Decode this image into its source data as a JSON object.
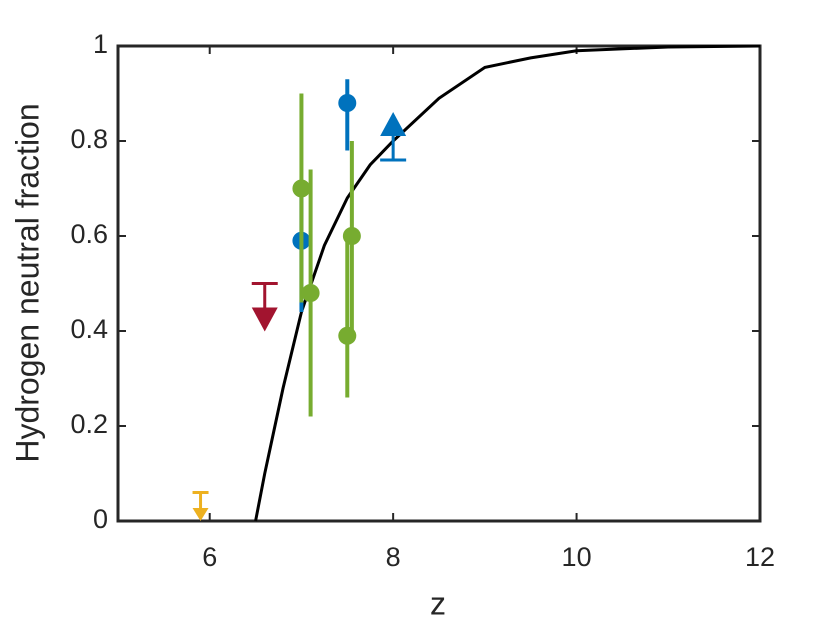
{
  "chart_data": {
    "type": "scatter",
    "x_label": "z",
    "y_label": "Hydrogen neutral fraction",
    "xlim": [
      5,
      12
    ],
    "xticks": [
      6,
      8,
      10,
      12
    ],
    "ylim": [
      0,
      1
    ],
    "yticks": [
      0,
      0.2,
      0.4,
      0.6,
      0.8,
      1
    ],
    "series": [
      {
        "style": "line",
        "color": "#000000",
        "x": [
          6.5,
          6.6,
          6.7,
          6.8,
          6.9,
          7.0,
          7.25,
          7.5,
          7.75,
          8.0,
          8.5,
          9.0,
          9.5,
          10.0,
          11.0,
          12.0
        ],
        "values": [
          0,
          0.1,
          0.19,
          0.28,
          0.36,
          0.44,
          0.58,
          0.68,
          0.75,
          0.8,
          0.89,
          0.955,
          0.975,
          0.99,
          0.998,
          1
        ]
      },
      {
        "style": "errorbar",
        "color": "#0072bd",
        "x": [
          7.0,
          7.5
        ],
        "values": [
          0.59,
          0.88
        ],
        "lower": [
          0.44,
          0.78
        ],
        "upper": [
          0.7,
          0.93
        ]
      },
      {
        "style": "errorbar",
        "color": "#77ac30",
        "x": [
          7.0,
          7.1,
          7.55,
          7.5
        ],
        "values": [
          0.7,
          0.48,
          0.6,
          0.39
        ],
        "lower": [
          0.46,
          0.22,
          0.39,
          0.26
        ],
        "upper": [
          0.9,
          0.74,
          0.8,
          0.6
        ]
      },
      {
        "style": "upper_limit",
        "color": "#a2142f",
        "x": [
          6.6
        ],
        "values": [
          0.5
        ]
      },
      {
        "style": "upper_limit",
        "color": "#edb120",
        "x": [
          5.9
        ],
        "values": [
          0.06
        ]
      },
      {
        "style": "lower_limit",
        "color": "#0072bd",
        "x": [
          8.0
        ],
        "values": [
          0.76
        ]
      }
    ]
  }
}
